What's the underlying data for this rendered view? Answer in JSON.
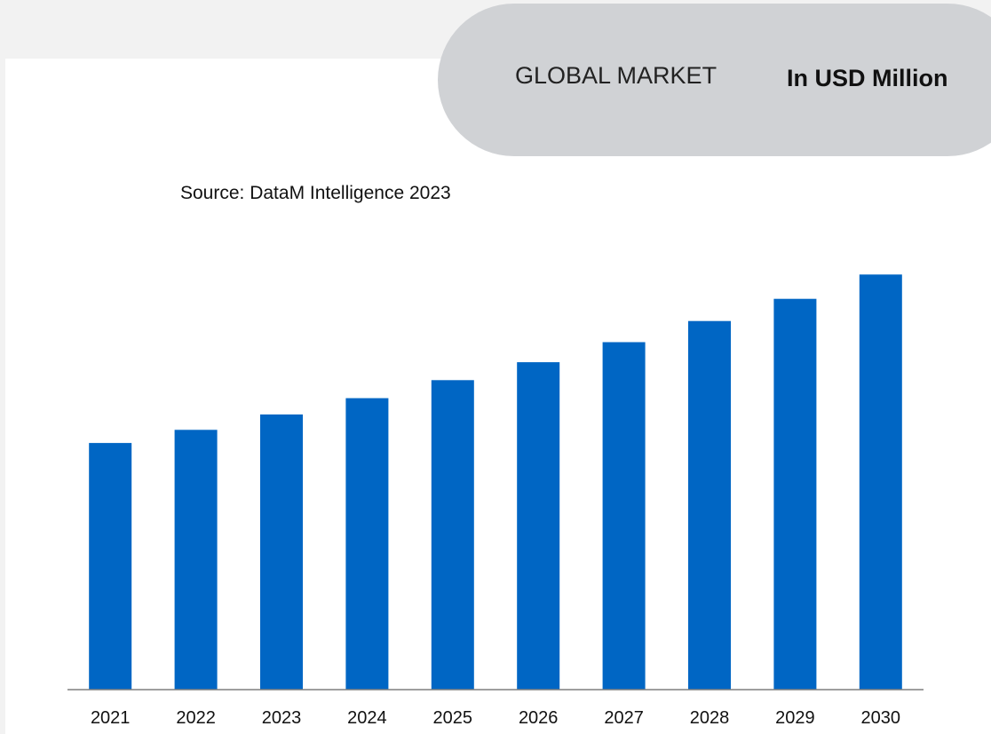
{
  "header": {
    "title": "GLOBAL MARKET",
    "unit": "In USD Million"
  },
  "source": "Source: DataM Intelligence 2023",
  "colors": {
    "bar": "#0066c4",
    "header_bg": "#d0d2d5",
    "page_bg": "#f2f2f2",
    "axis": "#7f7f7f"
  },
  "chart_data": {
    "type": "bar",
    "categories": [
      "2021",
      "2022",
      "2023",
      "2024",
      "2025",
      "2026",
      "2027",
      "2028",
      "2029",
      "2030"
    ],
    "values": [
      46.7,
      49.2,
      52.1,
      55.2,
      58.6,
      62.0,
      65.8,
      69.8,
      74.0,
      78.6
    ],
    "title": "",
    "xlabel": "",
    "ylabel": "",
    "ylim": [
      0,
      80
    ],
    "grid": false,
    "legend": "none"
  }
}
